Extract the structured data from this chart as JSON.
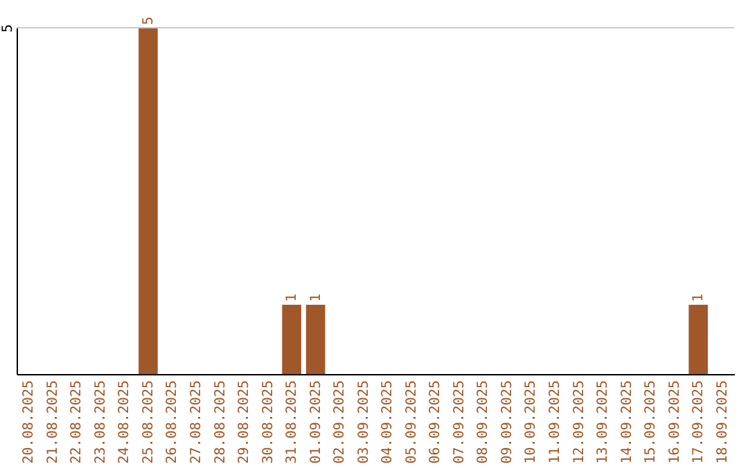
{
  "chart_data": {
    "type": "bar",
    "categories": [
      "20.08.2025",
      "21.08.2025",
      "22.08.2025",
      "23.08.2025",
      "24.08.2025",
      "25.08.2025",
      "26.08.2025",
      "27.08.2025",
      "28.08.2025",
      "29.08.2025",
      "30.08.2025",
      "31.08.2025",
      "01.09.2025",
      "02.09.2025",
      "03.09.2025",
      "04.09.2025",
      "05.09.2025",
      "06.09.2025",
      "07.09.2025",
      "08.09.2025",
      "09.09.2025",
      "10.09.2025",
      "11.09.2025",
      "12.09.2025",
      "13.09.2025",
      "14.09.2025",
      "15.09.2025",
      "16.09.2025",
      "17.09.2025",
      "18.09.2025"
    ],
    "values": [
      0,
      0,
      0,
      0,
      0,
      5,
      0,
      0,
      0,
      0,
      0,
      1,
      1,
      0,
      0,
      0,
      0,
      0,
      0,
      0,
      0,
      0,
      0,
      0,
      0,
      0,
      0,
      0,
      1,
      0
    ],
    "value_labels": [
      null,
      null,
      null,
      null,
      null,
      "5",
      null,
      null,
      null,
      null,
      null,
      "1",
      "1",
      null,
      null,
      null,
      null,
      null,
      null,
      null,
      null,
      null,
      null,
      null,
      null,
      null,
      null,
      null,
      "1",
      null
    ],
    "color": "#a0582a",
    "ylim": [
      0,
      5
    ],
    "yticks": [
      5
    ],
    "ref_lines": [
      {
        "axis": "y",
        "value": 5,
        "color": "#c8c8c8"
      }
    ]
  }
}
